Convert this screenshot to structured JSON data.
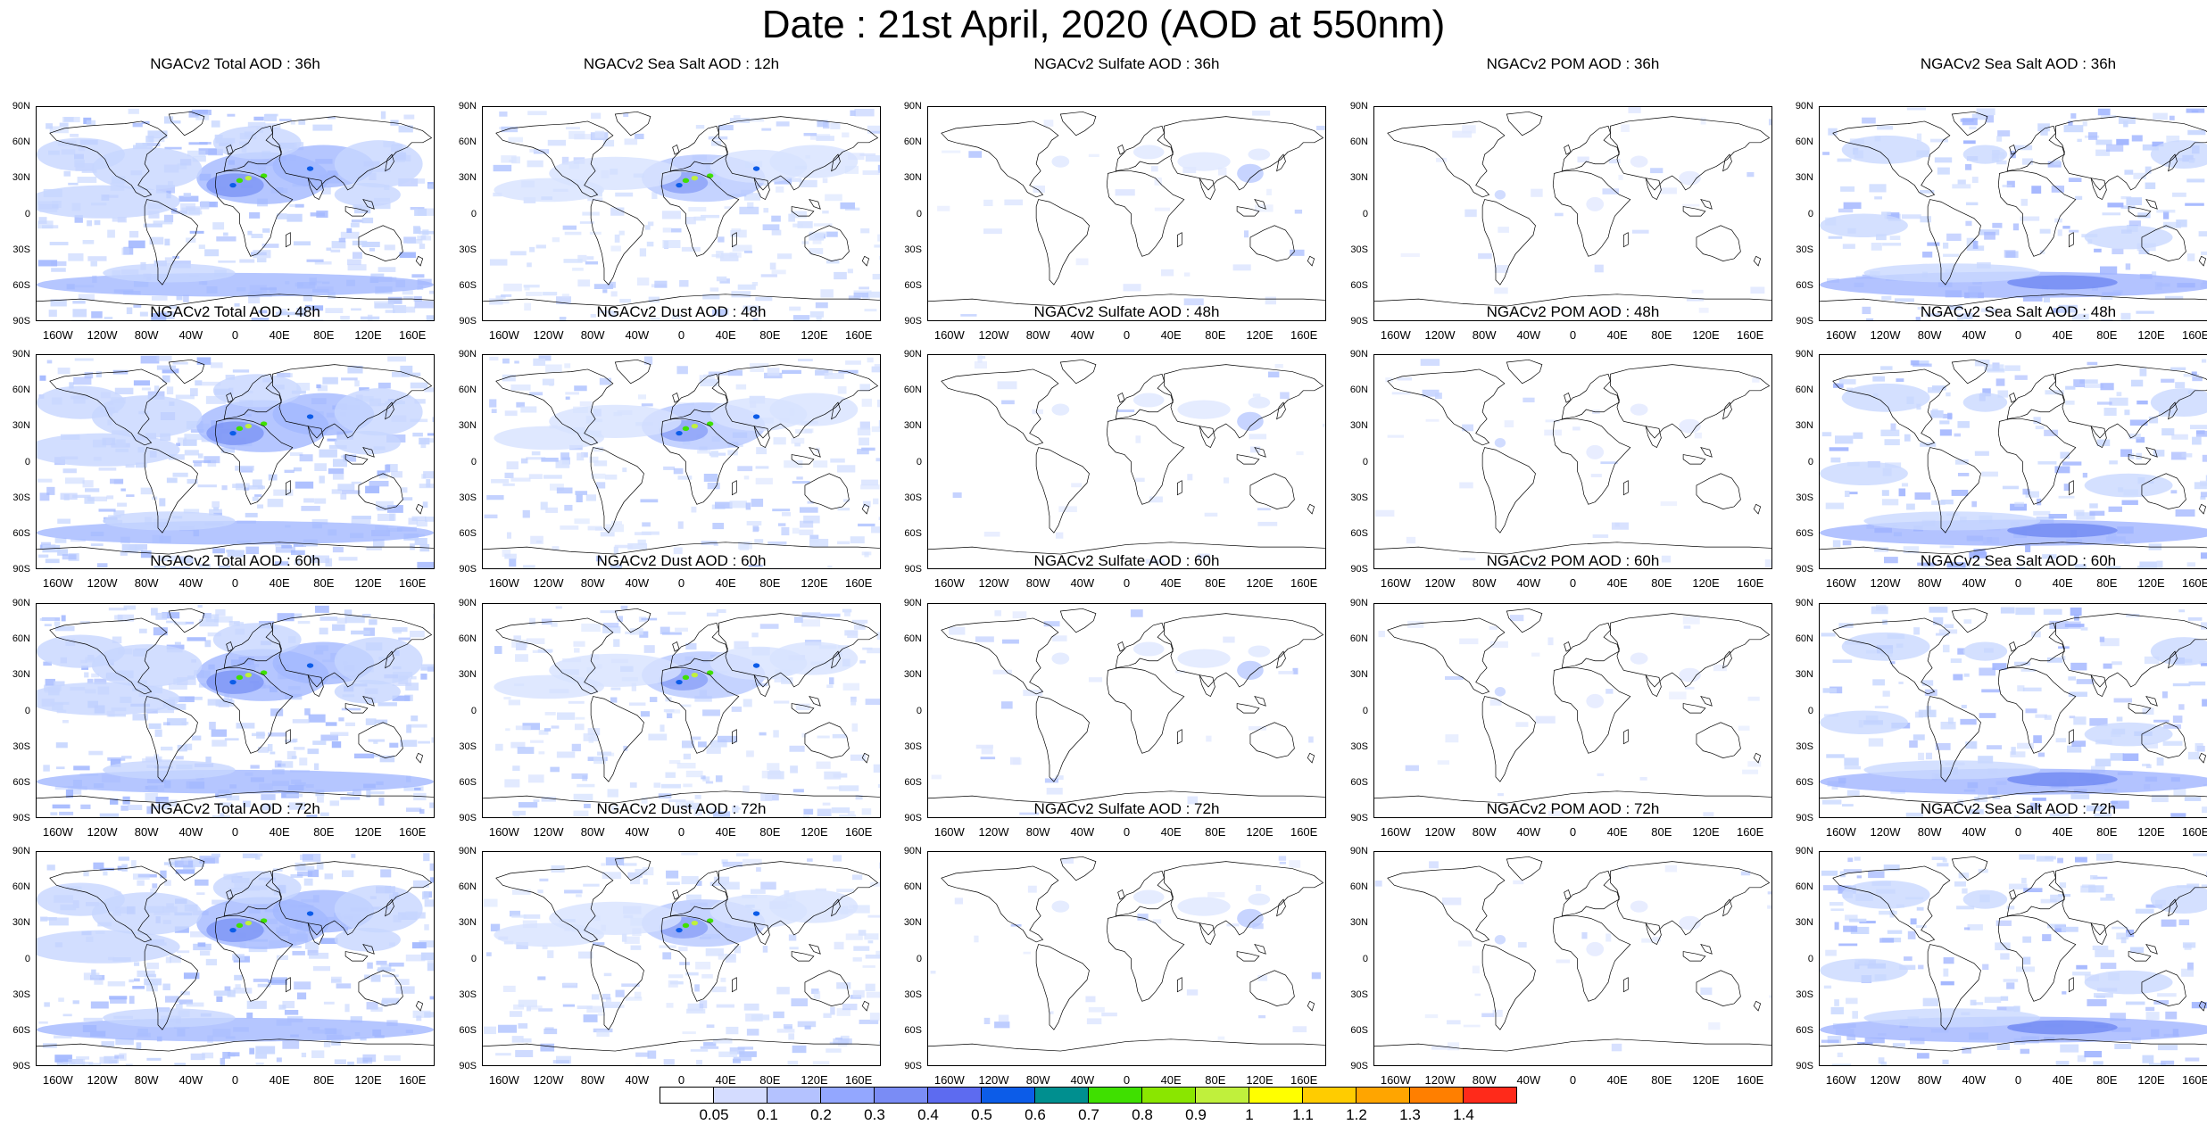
{
  "title": "Date : 21st April, 2020 (AOD at 550nm)",
  "lat_labels": [
    "90N",
    "60N",
    "30N",
    "0",
    "30S",
    "60S",
    "90S"
  ],
  "lon_labels": [
    "160W",
    "120W",
    "80W",
    "40W",
    "0",
    "40E",
    "80E",
    "120E",
    "160E"
  ],
  "columns": [
    {
      "type": "total",
      "colors": [
        "#c7d6ff",
        "#a3b8ff",
        "#7c94f5"
      ]
    },
    {
      "type": "dust",
      "colors": [
        "#d7e2ff",
        "#b6c8ff",
        "#8aa0f8"
      ]
    },
    {
      "type": "sulfate",
      "colors": [
        "#dfe7ff",
        "#b9c9ff",
        "#8fa4ff"
      ]
    },
    {
      "type": "pom",
      "colors": [
        "#e2e9ff",
        "#c5d3ff",
        "#9cb0ff"
      ]
    },
    {
      "type": "seasalt",
      "colors": [
        "#c9d8ff",
        "#a0b4ff",
        "#6f88f2"
      ]
    }
  ],
  "panels": [
    {
      "title": "NGACv2 Total AOD : 36h"
    },
    {
      "title": "NGACv2 Sea Salt  AOD : 12h"
    },
    {
      "title": "NGACv2 Sulfate AOD : 36h"
    },
    {
      "title": "NGACv2 POM AOD : 36h"
    },
    {
      "title": "NGACv2 Sea Salt  AOD : 36h"
    },
    {
      "title": "NGACv2 Total AOD : 48h"
    },
    {
      "title": "NGACv2 Dust AOD : 48h"
    },
    {
      "title": "NGACv2 Sulfate AOD : 48h"
    },
    {
      "title": "NGACv2 POM AOD : 48h"
    },
    {
      "title": "NGACv2 Sea Salt  AOD : 48h"
    },
    {
      "title": "NGACv2 Total AOD : 60h"
    },
    {
      "title": "NGACv2 Dust AOD : 60h"
    },
    {
      "title": "NGACv2 Sulfate AOD : 60h"
    },
    {
      "title": "NGACv2 POM AOD : 60h"
    },
    {
      "title": "NGACv2 Sea Salt  AOD : 60h"
    },
    {
      "title": "NGACv2 Total AOD : 72h"
    },
    {
      "title": "NGACv2 Dust AOD : 72h"
    },
    {
      "title": "NGACv2 Sulfate AOD : 72h"
    },
    {
      "title": "NGACv2 POM AOD : 72h"
    },
    {
      "title": "NGACv2 Sea Salt  AOD : 72h"
    }
  ],
  "colorbar": {
    "colors": [
      "#ffffff",
      "#d4dcff",
      "#b4c2ff",
      "#93a7ff",
      "#7a8cf5",
      "#5d6bf0",
      "#0c5ce8",
      "#008f8f",
      "#3fe000",
      "#8ae600",
      "#c0f03c",
      "#ffff00",
      "#ffcc00",
      "#ffa500",
      "#ff7f00",
      "#ff2a1a"
    ],
    "labels": [
      "0.05",
      "0.1",
      "0.2",
      "0.3",
      "0.4",
      "0.5",
      "0.6",
      "0.7",
      "0.8",
      "0.9",
      "1",
      "1.1",
      "1.2",
      "1.3",
      "1.4"
    ]
  }
}
